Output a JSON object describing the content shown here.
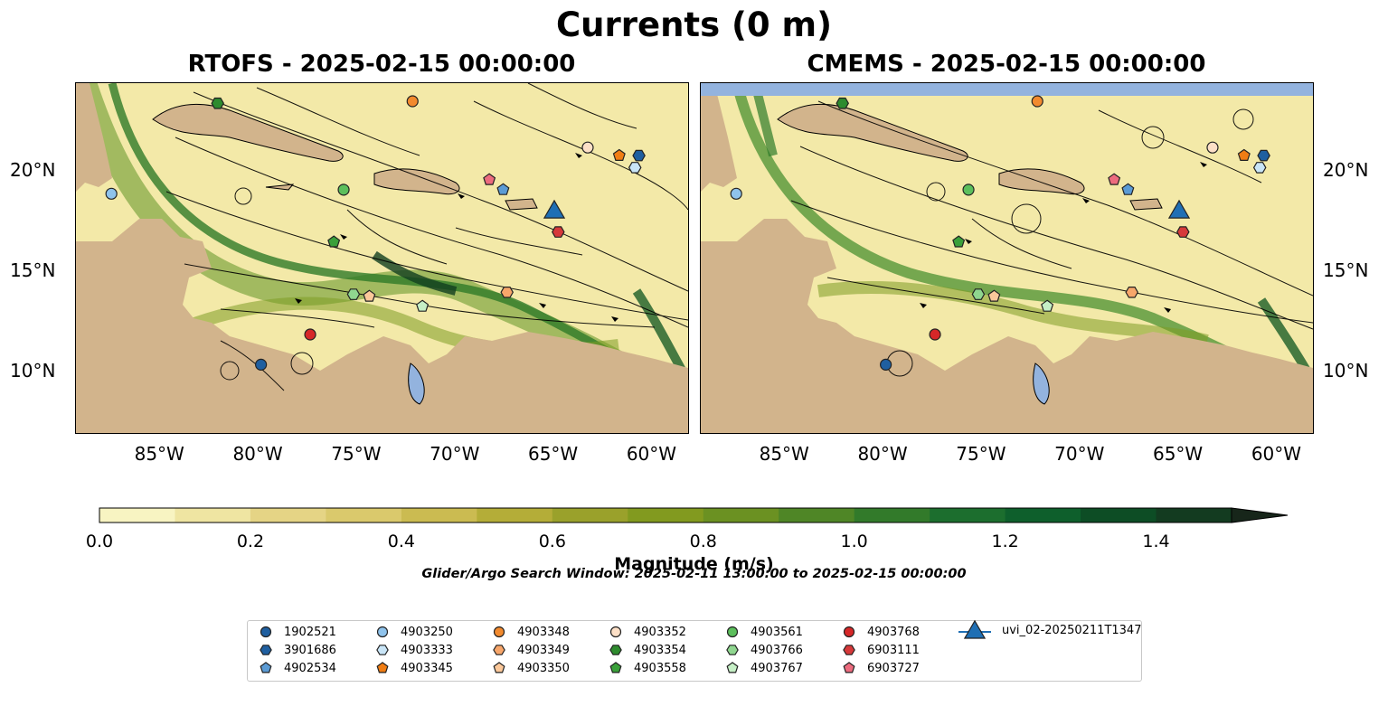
{
  "title": "Currents (0 m)",
  "panels": [
    {
      "title": "RTOFS - 2025-02-15 00:00:00"
    },
    {
      "title": "CMEMS - 2025-02-15 00:00:00"
    }
  ],
  "axes": {
    "lon_labels": [
      "85°W",
      "80°W",
      "75°W",
      "70°W",
      "65°W",
      "60°W"
    ],
    "lat_labels": [
      "10°N",
      "15°N",
      "20°N"
    ],
    "lon_range": [
      -89.3,
      -58.2
    ],
    "lat_range": [
      7.0,
      24.4
    ]
  },
  "colorbar": {
    "label": "Magnitude (m/s)",
    "ticks": [
      "0.0",
      "0.2",
      "0.4",
      "0.6",
      "0.8",
      "1.0",
      "1.2",
      "1.4"
    ],
    "range": [
      0,
      1.5
    ],
    "extend": "max",
    "colors": [
      "#f8f4c2",
      "#efe5a2",
      "#e5d485",
      "#dac96c",
      "#cbbb51",
      "#b4ad38",
      "#9aa12b",
      "#829a1f",
      "#6b9122",
      "#4f8626",
      "#327a2a",
      "#1c6e2e",
      "#0e5f2c",
      "#0d4d25",
      "#133b20",
      "#1a2c1a",
      "#17261a"
    ]
  },
  "search_window": "Glider/Argo Search Window: 2025-02-11 13:00:00 to 2025-02-15 00:00:00",
  "legend": [
    {
      "label": "1902521",
      "marker": "circle",
      "color": "#1f5fa0"
    },
    {
      "label": "3901686",
      "marker": "hexagon",
      "color": "#1f5fa0"
    },
    {
      "label": "4902534",
      "marker": "pentagon",
      "color": "#5b9bd5"
    },
    {
      "label": "4903250",
      "marker": "circle",
      "color": "#8fc3ec"
    },
    {
      "label": "4903333",
      "marker": "hexagon",
      "color": "#c9e5f7"
    },
    {
      "label": "4903345",
      "marker": "pentagon",
      "color": "#f07d14"
    },
    {
      "label": "4903348",
      "marker": "circle",
      "color": "#f28a2e"
    },
    {
      "label": "4903349",
      "marker": "hexagon",
      "color": "#f7a66a"
    },
    {
      "label": "4903350",
      "marker": "pentagon",
      "color": "#fbc89a"
    },
    {
      "label": "4903352",
      "marker": "circle",
      "color": "#fde0c7"
    },
    {
      "label": "4903354",
      "marker": "hexagon",
      "color": "#2e8b2e"
    },
    {
      "label": "4903558",
      "marker": "pentagon",
      "color": "#3aa03a"
    },
    {
      "label": "4903561",
      "marker": "circle",
      "color": "#5cbf5c"
    },
    {
      "label": "4903766",
      "marker": "hexagon",
      "color": "#8fd68f"
    },
    {
      "label": "4903767",
      "marker": "pentagon",
      "color": "#c6efc6"
    },
    {
      "label": "4903768",
      "marker": "circle",
      "color": "#d62728"
    },
    {
      "label": "6903111",
      "marker": "hexagon",
      "color": "#d6393a"
    },
    {
      "label": "6903727",
      "marker": "pentagon",
      "color": "#ec6b7e"
    },
    {
      "label": "uvi_02-20250211T1347",
      "marker": "triangle",
      "color": "#1f6fb4"
    }
  ],
  "observations": [
    {
      "panel": 0,
      "id": "1902521",
      "lon": -79.9,
      "lat": 10.4
    },
    {
      "panel": 0,
      "id": "3901686",
      "lon": -60.7,
      "lat": 20.8
    },
    {
      "panel": 0,
      "id": "4902534",
      "lon": -67.6,
      "lat": 19.1
    },
    {
      "panel": 0,
      "id": "4903250",
      "lon": -87.5,
      "lat": 18.9
    },
    {
      "panel": 0,
      "id": "4903333",
      "lon": -60.9,
      "lat": 20.2
    },
    {
      "panel": 0,
      "id": "4903345",
      "lon": -61.7,
      "lat": 20.8
    },
    {
      "panel": 0,
      "id": "4903348",
      "lon": -72.2,
      "lat": 23.5
    },
    {
      "panel": 0,
      "id": "4903349",
      "lon": -67.4,
      "lat": 14.0
    },
    {
      "panel": 0,
      "id": "4903350",
      "lon": -74.4,
      "lat": 13.8
    },
    {
      "panel": 0,
      "id": "4903352",
      "lon": -63.3,
      "lat": 21.2
    },
    {
      "panel": 0,
      "id": "4903354",
      "lon": -82.1,
      "lat": 23.4
    },
    {
      "panel": 0,
      "id": "4903558",
      "lon": -76.2,
      "lat": 16.5
    },
    {
      "panel": 0,
      "id": "4903561",
      "lon": -75.7,
      "lat": 19.1
    },
    {
      "panel": 0,
      "id": "4903766",
      "lon": -75.2,
      "lat": 13.9
    },
    {
      "panel": 0,
      "id": "4903767",
      "lon": -71.7,
      "lat": 13.3
    },
    {
      "panel": 0,
      "id": "4903768",
      "lon": -77.4,
      "lat": 11.9
    },
    {
      "panel": 0,
      "id": "6903111",
      "lon": -64.8,
      "lat": 17.0
    },
    {
      "panel": 0,
      "id": "6903727",
      "lon": -68.3,
      "lat": 19.6
    },
    {
      "panel": 0,
      "id": "uvi_02-20250211T1347",
      "lon": -65.0,
      "lat": 18.1
    },
    {
      "panel": 1,
      "id": "1902521",
      "lon": -79.9,
      "lat": 10.4
    },
    {
      "panel": 1,
      "id": "3901686",
      "lon": -60.7,
      "lat": 20.8
    },
    {
      "panel": 1,
      "id": "4902534",
      "lon": -67.6,
      "lat": 19.1
    },
    {
      "panel": 1,
      "id": "4903250",
      "lon": -87.5,
      "lat": 18.9
    },
    {
      "panel": 1,
      "id": "4903333",
      "lon": -60.9,
      "lat": 20.2
    },
    {
      "panel": 1,
      "id": "4903345",
      "lon": -61.7,
      "lat": 20.8
    },
    {
      "panel": 1,
      "id": "4903348",
      "lon": -72.2,
      "lat": 23.5
    },
    {
      "panel": 1,
      "id": "4903349",
      "lon": -67.4,
      "lat": 14.0
    },
    {
      "panel": 1,
      "id": "4903350",
      "lon": -74.4,
      "lat": 13.8
    },
    {
      "panel": 1,
      "id": "4903352",
      "lon": -63.3,
      "lat": 21.2
    },
    {
      "panel": 1,
      "id": "4903354",
      "lon": -82.1,
      "lat": 23.4
    },
    {
      "panel": 1,
      "id": "4903558",
      "lon": -76.2,
      "lat": 16.5
    },
    {
      "panel": 1,
      "id": "4903561",
      "lon": -75.7,
      "lat": 19.1
    },
    {
      "panel": 1,
      "id": "4903766",
      "lon": -75.2,
      "lat": 13.9
    },
    {
      "panel": 1,
      "id": "4903767",
      "lon": -71.7,
      "lat": 13.3
    },
    {
      "panel": 1,
      "id": "4903768",
      "lon": -77.4,
      "lat": 11.9
    },
    {
      "panel": 1,
      "id": "6903111",
      "lon": -64.8,
      "lat": 17.0
    },
    {
      "panel": 1,
      "id": "6903727",
      "lon": -68.3,
      "lat": 19.6
    },
    {
      "panel": 1,
      "id": "uvi_02-20250211T1347",
      "lon": -65.0,
      "lat": 18.1
    }
  ]
}
